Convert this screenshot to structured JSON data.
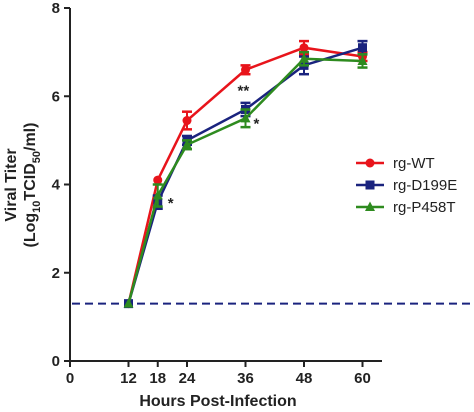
{
  "chart_data": {
    "type": "line",
    "xlabel": "Hours Post-Infection",
    "ylabel_line1": "Viral Titer",
    "ylabel_line2_prefix": "(Log",
    "ylabel_line2_sub1": "10",
    "ylabel_line2_mid": "TCID",
    "ylabel_line2_sub2": "50",
    "ylabel_line2_suffix": "/ml)",
    "xlim": [
      0,
      64
    ],
    "ylim": [
      0,
      8
    ],
    "x_ticks": [
      0,
      12,
      18,
      24,
      36,
      48,
      60
    ],
    "y_ticks": [
      0,
      2,
      4,
      6,
      8
    ],
    "detection_limit": 1.3,
    "legend_position": "right",
    "series": [
      {
        "name": "rg-WT",
        "color": "#e8141b",
        "marker": "circle",
        "x": [
          12,
          18,
          24,
          36,
          48,
          60
        ],
        "y": [
          1.3,
          4.1,
          5.45,
          6.6,
          7.1,
          6.9
        ],
        "err": [
          0,
          0,
          0.2,
          0.1,
          0.15,
          0.1
        ]
      },
      {
        "name": "rg-D199E",
        "color": "#1a237e",
        "marker": "square",
        "x": [
          12,
          18,
          24,
          36,
          48,
          60
        ],
        "y": [
          1.3,
          3.6,
          5.0,
          5.7,
          6.7,
          7.1
        ],
        "err": [
          0,
          0.15,
          0.1,
          0.15,
          0.2,
          0.15
        ]
      },
      {
        "name": "rg-P458T",
        "color": "#2e8b1f",
        "marker": "triangle",
        "x": [
          12,
          18,
          24,
          36,
          48,
          60
        ],
        "y": [
          1.3,
          3.75,
          4.9,
          5.5,
          6.85,
          6.8
        ],
        "err": [
          0,
          0.25,
          0.1,
          0.2,
          0.15,
          0.15
        ]
      }
    ],
    "annotations": [
      {
        "text": "*",
        "x": 18,
        "y": 3.6
      },
      {
        "text": "**",
        "x": 36,
        "y": 5.9
      },
      {
        "text": "*",
        "x": 36,
        "y": 5.5
      }
    ]
  }
}
